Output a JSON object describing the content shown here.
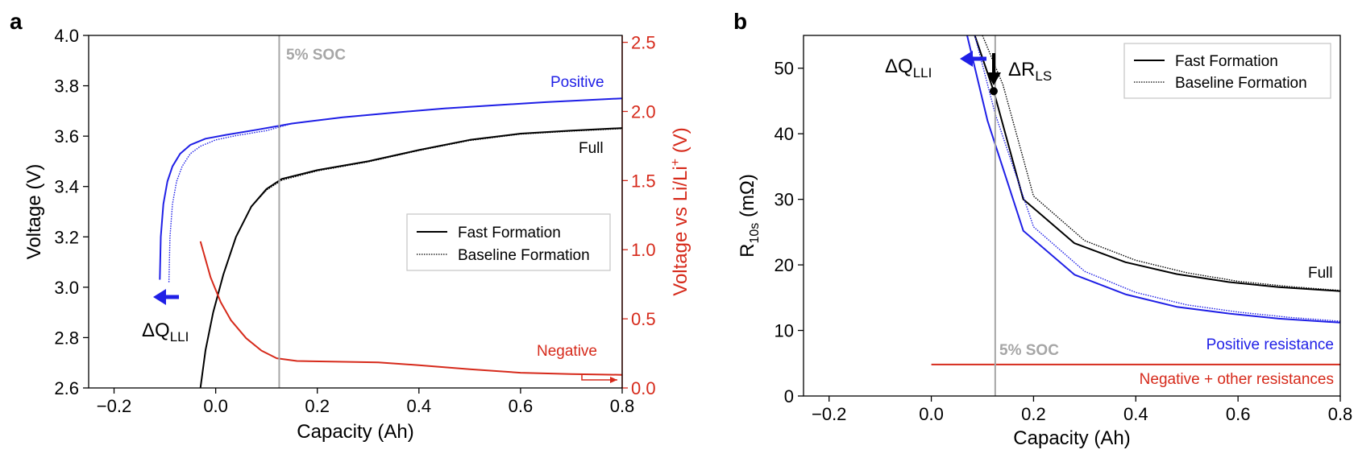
{
  "colors": {
    "black": "#000000",
    "blue": "#1f1fe6",
    "red": "#d62a1b",
    "gray": "#a6a6a6"
  },
  "chart_data": [
    {
      "panel": "a",
      "type": "line",
      "xlabel": "Capacity (Ah)",
      "ylabel": "Voltage (V)",
      "y2label": "Voltage vs Li/Li",
      "y2label_sup": "+",
      "y2label_unit": " (V)",
      "xlim": [
        -0.25,
        0.8
      ],
      "ylim": [
        2.6,
        4.0
      ],
      "y2lim": [
        0.0,
        2.55
      ],
      "xticks": [
        -0.2,
        0.0,
        0.2,
        0.4,
        0.6,
        0.8
      ],
      "xtick_labels": [
        "−0.2",
        "0.0",
        "0.2",
        "0.4",
        "0.6",
        "0.8"
      ],
      "yticks": [
        2.6,
        2.8,
        3.0,
        3.2,
        3.4,
        3.6,
        3.8,
        4.0
      ],
      "ytick_labels": [
        "2.6",
        "2.8",
        "3.0",
        "3.2",
        "3.4",
        "3.6",
        "3.8",
        "4.0"
      ],
      "y2ticks": [
        0.0,
        0.5,
        1.0,
        1.5,
        2.0,
        2.5
      ],
      "y2tick_labels": [
        "0.0",
        "0.5",
        "1.0",
        "1.5",
        "2.0",
        "2.5"
      ],
      "vline": {
        "x": 0.125,
        "label": "5% SOC"
      },
      "legend": {
        "placement": "center-right",
        "entries": [
          "Fast Formation",
          "Baseline Formation"
        ]
      },
      "annotations": {
        "positive": "Positive",
        "full": "Full",
        "negative": "Negative",
        "dq": "ΔQ",
        "dq_sub": "LLI"
      },
      "series": [
        {
          "name": "Positive (fast)",
          "color": "blue",
          "axis": "left",
          "style": "solid",
          "points": [
            [
              -0.11,
              3.03
            ],
            [
              -0.108,
              3.2
            ],
            [
              -0.103,
              3.33
            ],
            [
              -0.095,
              3.42
            ],
            [
              -0.085,
              3.48
            ],
            [
              -0.07,
              3.53
            ],
            [
              -0.05,
              3.565
            ],
            [
              -0.02,
              3.59
            ],
            [
              0.02,
              3.605
            ],
            [
              0.08,
              3.625
            ],
            [
              0.15,
              3.65
            ],
            [
              0.25,
              3.675
            ],
            [
              0.35,
              3.693
            ],
            [
              0.45,
              3.71
            ],
            [
              0.55,
              3.723
            ],
            [
              0.65,
              3.735
            ],
            [
              0.75,
              3.745
            ],
            [
              0.8,
              3.75
            ]
          ]
        },
        {
          "name": "Positive (baseline)",
          "color": "blue",
          "axis": "left",
          "style": "dotted",
          "points": [
            [
              -0.092,
              3.02
            ],
            [
              -0.09,
              3.2
            ],
            [
              -0.085,
              3.33
            ],
            [
              -0.077,
              3.42
            ],
            [
              -0.066,
              3.48
            ],
            [
              -0.05,
              3.53
            ],
            [
              -0.03,
              3.56
            ],
            [
              0.0,
              3.585
            ],
            [
              0.04,
              3.602
            ],
            [
              0.1,
              3.622
            ],
            [
              0.15,
              3.65
            ],
            [
              0.25,
              3.675
            ],
            [
              0.35,
              3.693
            ],
            [
              0.45,
              3.71
            ],
            [
              0.55,
              3.723
            ],
            [
              0.65,
              3.735
            ],
            [
              0.75,
              3.745
            ],
            [
              0.8,
              3.75
            ]
          ]
        },
        {
          "name": "Full (fast)",
          "color": "black",
          "axis": "left",
          "style": "solid",
          "points": [
            [
              -0.03,
              2.6
            ],
            [
              -0.02,
              2.75
            ],
            [
              -0.005,
              2.9
            ],
            [
              0.015,
              3.05
            ],
            [
              0.04,
              3.2
            ],
            [
              0.07,
              3.32
            ],
            [
              0.1,
              3.39
            ],
            [
              0.13,
              3.43
            ],
            [
              0.2,
              3.465
            ],
            [
              0.3,
              3.5
            ],
            [
              0.4,
              3.545
            ],
            [
              0.5,
              3.585
            ],
            [
              0.6,
              3.61
            ],
            [
              0.7,
              3.622
            ],
            [
              0.8,
              3.632
            ]
          ]
        },
        {
          "name": "Full (baseline)",
          "color": "black",
          "axis": "left",
          "style": "dotted",
          "points": [
            [
              -0.03,
              2.6
            ],
            [
              -0.02,
              2.75
            ],
            [
              -0.005,
              2.9
            ],
            [
              0.015,
              3.05
            ],
            [
              0.04,
              3.2
            ],
            [
              0.07,
              3.32
            ],
            [
              0.1,
              3.386
            ],
            [
              0.13,
              3.425
            ],
            [
              0.2,
              3.462
            ],
            [
              0.3,
              3.498
            ],
            [
              0.4,
              3.543
            ],
            [
              0.5,
              3.583
            ],
            [
              0.6,
              3.608
            ],
            [
              0.7,
              3.62
            ],
            [
              0.8,
              3.63
            ]
          ]
        },
        {
          "name": "Negative",
          "color": "red",
          "axis": "right",
          "style": "solid",
          "points": [
            [
              -0.03,
              1.06
            ],
            [
              -0.01,
              0.8
            ],
            [
              0.01,
              0.62
            ],
            [
              0.03,
              0.49
            ],
            [
              0.06,
              0.36
            ],
            [
              0.09,
              0.27
            ],
            [
              0.12,
              0.215
            ],
            [
              0.16,
              0.195
            ],
            [
              0.24,
              0.19
            ],
            [
              0.32,
              0.185
            ],
            [
              0.4,
              0.165
            ],
            [
              0.5,
              0.135
            ],
            [
              0.6,
              0.11
            ],
            [
              0.7,
              0.1
            ],
            [
              0.8,
              0.095
            ]
          ]
        }
      ]
    },
    {
      "panel": "b",
      "type": "line",
      "xlabel": "Capacity (Ah)",
      "ylabel": "R",
      "ylabel_sub": "10s",
      "ylabel_unit": " (mΩ)",
      "xlim": [
        -0.25,
        0.8
      ],
      "ylim": [
        0,
        55
      ],
      "xticks": [
        -0.2,
        0.0,
        0.2,
        0.4,
        0.6,
        0.8
      ],
      "xtick_labels": [
        "−0.2",
        "0.0",
        "0.2",
        "0.4",
        "0.6",
        "0.8"
      ],
      "yticks": [
        0,
        10,
        20,
        30,
        40,
        50
      ],
      "ytick_labels": [
        "0",
        "10",
        "20",
        "30",
        "40",
        "50"
      ],
      "vline": {
        "x": 0.125,
        "label": "5% SOC"
      },
      "legend": {
        "placement": "top-right",
        "entries": [
          "Fast Formation",
          "Baseline Formation"
        ]
      },
      "annotations": {
        "full": "Full",
        "positive": "Positive resistance",
        "negative": "Negative + other resistances",
        "dq": "ΔQ",
        "dq_sub": "LLI",
        "dr": "ΔR",
        "dr_sub": "LS"
      },
      "marker": {
        "x": 0.122,
        "y": 46.5
      },
      "series": [
        {
          "name": "Full (fast)",
          "color": "black",
          "axis": "left",
          "style": "solid",
          "points": [
            [
              0.085,
              55
            ],
            [
              0.122,
              46.5
            ],
            [
              0.18,
              30
            ],
            [
              0.28,
              23.3
            ],
            [
              0.38,
              20.4
            ],
            [
              0.48,
              18.6
            ],
            [
              0.58,
              17.4
            ],
            [
              0.68,
              16.6
            ],
            [
              0.8,
              16.0
            ]
          ]
        },
        {
          "name": "Full (baseline)",
          "color": "black",
          "axis": "left",
          "style": "dotted",
          "points": [
            [
              0.1,
              55
            ],
            [
              0.14,
              47.5
            ],
            [
              0.2,
              30.5
            ],
            [
              0.3,
              23.7
            ],
            [
              0.4,
              20.7
            ],
            [
              0.5,
              18.8
            ],
            [
              0.6,
              17.5
            ],
            [
              0.7,
              16.7
            ],
            [
              0.8,
              16.1
            ]
          ]
        },
        {
          "name": "Positive (fast)",
          "color": "blue",
          "axis": "left",
          "style": "solid",
          "points": [
            [
              0.07,
              55
            ],
            [
              0.11,
              42
            ],
            [
              0.18,
              25.2
            ],
            [
              0.28,
              18.5
            ],
            [
              0.38,
              15.5
            ],
            [
              0.48,
              13.6
            ],
            [
              0.58,
              12.6
            ],
            [
              0.68,
              11.8
            ],
            [
              0.8,
              11.2
            ]
          ]
        },
        {
          "name": "Positive (baseline)",
          "color": "blue",
          "axis": "left",
          "style": "dotted",
          "points": [
            [
              0.085,
              55
            ],
            [
              0.125,
              43
            ],
            [
              0.2,
              25.8
            ],
            [
              0.3,
              19.0
            ],
            [
              0.4,
              15.8
            ],
            [
              0.5,
              13.9
            ],
            [
              0.6,
              12.8
            ],
            [
              0.7,
              12.0
            ],
            [
              0.8,
              11.4
            ]
          ]
        },
        {
          "name": "Negative + other",
          "color": "red",
          "axis": "left",
          "style": "solid",
          "points": [
            [
              0.0,
              4.8
            ],
            [
              0.8,
              4.8
            ]
          ]
        }
      ]
    }
  ]
}
